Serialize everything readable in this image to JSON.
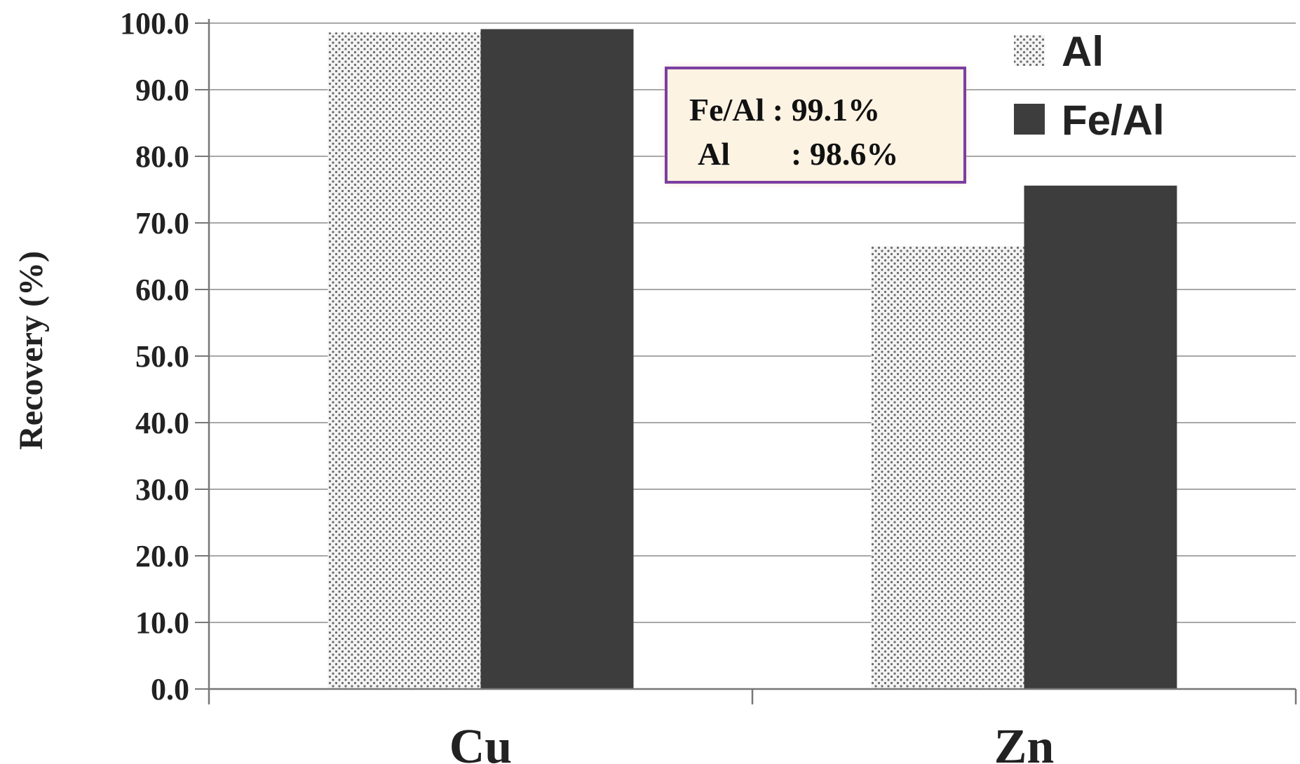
{
  "chart_data": {
    "type": "bar",
    "categories": [
      "Cu",
      "Zn"
    ],
    "series": [
      {
        "name": "Al",
        "values": [
          98.6,
          66.5
        ],
        "pattern": "dotted",
        "color": "#9a9a9a"
      },
      {
        "name": "Fe/Al",
        "values": [
          99.1,
          75.6
        ],
        "pattern": "solid",
        "color": "#3d3d3d"
      }
    ],
    "ylabel": "Recovery (%)",
    "xlabel": "",
    "ylim": [
      0,
      100
    ],
    "yticks": [
      "0.0",
      "10.0",
      "20.0",
      "30.0",
      "40.0",
      "50.0",
      "60.0",
      "70.0",
      "80.0",
      "90.0",
      "100.0"
    ],
    "grid": true,
    "legend": "top-right",
    "annotation": {
      "line1": "Fe/Al : 99.1%",
      "line2_label": "Al",
      "line2_value": ": 98.6%",
      "border_color": "#7b3fa0",
      "fill_color": "#fdf3e3"
    }
  }
}
